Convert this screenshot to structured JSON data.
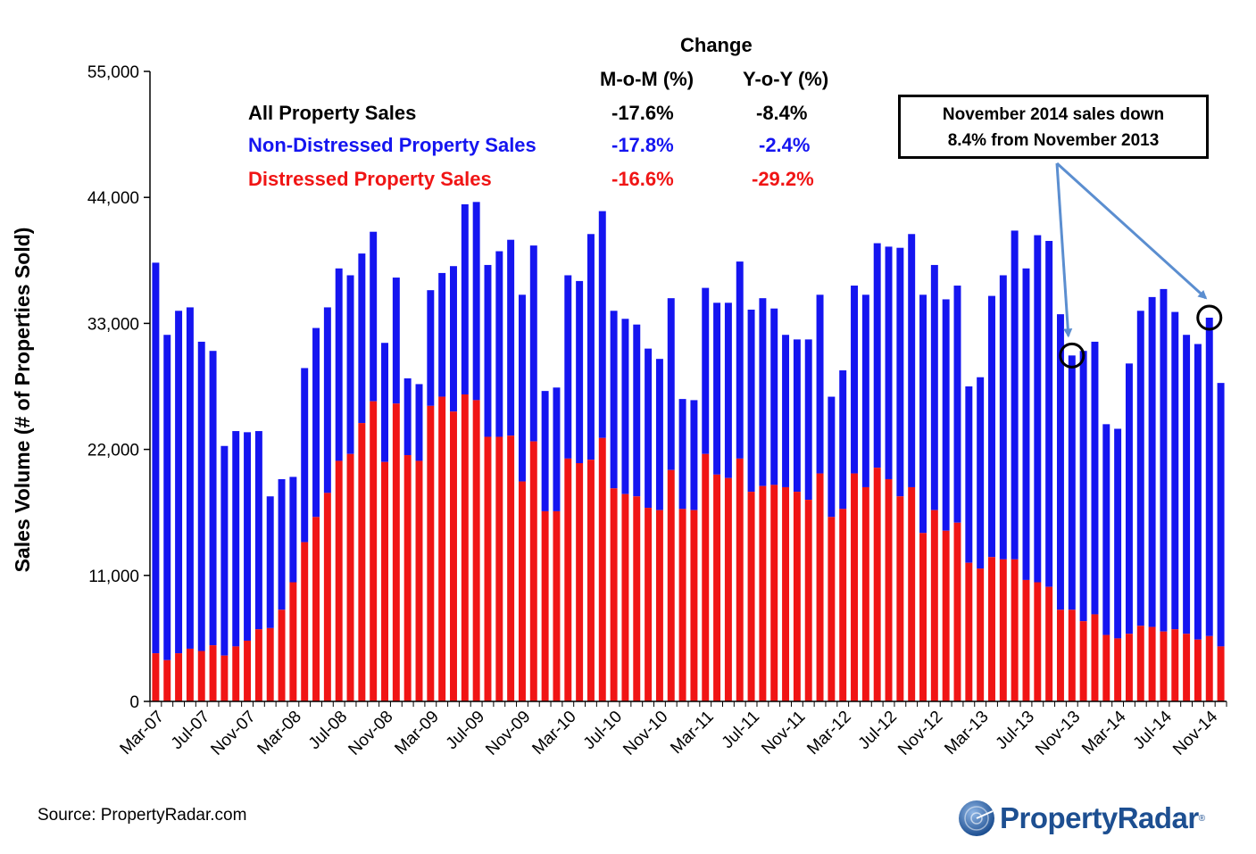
{
  "colors": {
    "non_distressed": "#1515f0",
    "distressed": "#f01515",
    "black_text": "#000000",
    "logo": "#1d4f91",
    "arrow": "#5b8ed0"
  },
  "chart_data": {
    "type": "bar",
    "stacked": true,
    "title": "",
    "xlabel": "",
    "ylabel": "Sales Volume (# of Properties Sold)",
    "ylim": [
      0,
      55000
    ],
    "yticks": [
      0,
      11000,
      22000,
      33000,
      44000,
      55000
    ],
    "ytick_labels": [
      "0",
      "11,000",
      "22,000",
      "33,000",
      "44,000",
      "55,000"
    ],
    "x_start": "Mar-07",
    "x_end": "Nov-14",
    "xtick_labels": [
      "Mar-07",
      "Jul-07",
      "Nov-07",
      "Mar-08",
      "Jul-08",
      "Nov-08",
      "Mar-09",
      "Jul-09",
      "Nov-09",
      "Mar-10",
      "Jul-10",
      "Nov-10",
      "Mar-11",
      "Jul-11",
      "Nov-11",
      "Mar-12",
      "Jul-12",
      "Nov-12",
      "Mar-13",
      "Jul-13",
      "Nov-13",
      "Mar-14",
      "Jul-14",
      "Nov-14"
    ],
    "series": [
      {
        "name": "Distressed Property Sales",
        "values": [
          4200,
          3600,
          4200,
          4600,
          4400,
          4900,
          4000,
          4800,
          5300,
          6300,
          6400,
          8000,
          10400,
          13900,
          16100,
          18200,
          21000,
          21600,
          24300,
          26200,
          20900,
          26000,
          21500,
          21000,
          25800,
          26600,
          25300,
          26800,
          26300,
          23100,
          23100,
          23200,
          19200,
          22700,
          16600,
          16600,
          21200,
          20800,
          21100,
          23000,
          18600,
          18100,
          17900,
          16900,
          16700,
          20200,
          16800,
          16700,
          21600,
          19800,
          19500,
          21200,
          18300,
          18800,
          18900,
          18700,
          18300,
          17600,
          19900,
          16100,
          16800,
          19900,
          18700,
          20400,
          19400,
          17900,
          18700,
          14700,
          16700,
          14900,
          15600,
          12100,
          11600,
          12600,
          12400,
          12400,
          10600,
          10400,
          10000,
          8000,
          8000,
          7000,
          7600,
          5800,
          5500,
          5900,
          6600,
          6500,
          6100,
          6300,
          5900,
          5400,
          5700,
          4800
        ]
      },
      {
        "name": "Non-Distressed Property Sales",
        "values": [
          34100,
          28400,
          29900,
          29800,
          27000,
          25700,
          18300,
          18800,
          18200,
          17300,
          11500,
          11400,
          9200,
          15200,
          16500,
          16200,
          16800,
          15600,
          14800,
          14800,
          10400,
          11000,
          6700,
          6700,
          10100,
          10800,
          12700,
          16600,
          17300,
          15000,
          16200,
          17100,
          16300,
          17100,
          10500,
          10800,
          16000,
          15900,
          19700,
          19800,
          15500,
          15300,
          15000,
          13900,
          13200,
          15000,
          9600,
          9600,
          14500,
          15000,
          15300,
          17200,
          15900,
          16400,
          15400,
          13300,
          13300,
          14000,
          15600,
          10500,
          12100,
          16400,
          16800,
          19600,
          20300,
          21700,
          22100,
          20800,
          21400,
          20200,
          20700,
          15400,
          16700,
          22800,
          24800,
          28700,
          27200,
          30300,
          30200,
          25800,
          22200,
          23600,
          23800,
          18400,
          18300,
          23600,
          27500,
          28800,
          29900,
          27700,
          26100,
          25800,
          27800,
          23000
        ]
      }
    ],
    "table": {
      "header": "Change",
      "col_mom": "M-o-M (%)",
      "col_yoy": "Y-o-Y (%)",
      "rows": [
        {
          "label": "All Property Sales",
          "mom": "-17.6%",
          "yoy": "-8.4%",
          "color": "#000000"
        },
        {
          "label": "Non-Distressed Property Sales",
          "mom": "-17.8%",
          "yoy": "-2.4%",
          "color": "#1515f0"
        },
        {
          "label": "Distressed Property Sales",
          "mom": "-16.6%",
          "yoy": "-29.2%",
          "color": "#f01515"
        }
      ]
    },
    "annotation": {
      "line1": "November 2014 sales down",
      "line2": "8.4% from November 2013",
      "targets": [
        "Nov-13",
        "Nov-14"
      ]
    }
  },
  "footer": {
    "source": "Source: PropertyRadar.com",
    "logo_text": "PropertyRadar",
    "logo_mark": "®",
    "logo_icon": "radar-globe-icon"
  }
}
